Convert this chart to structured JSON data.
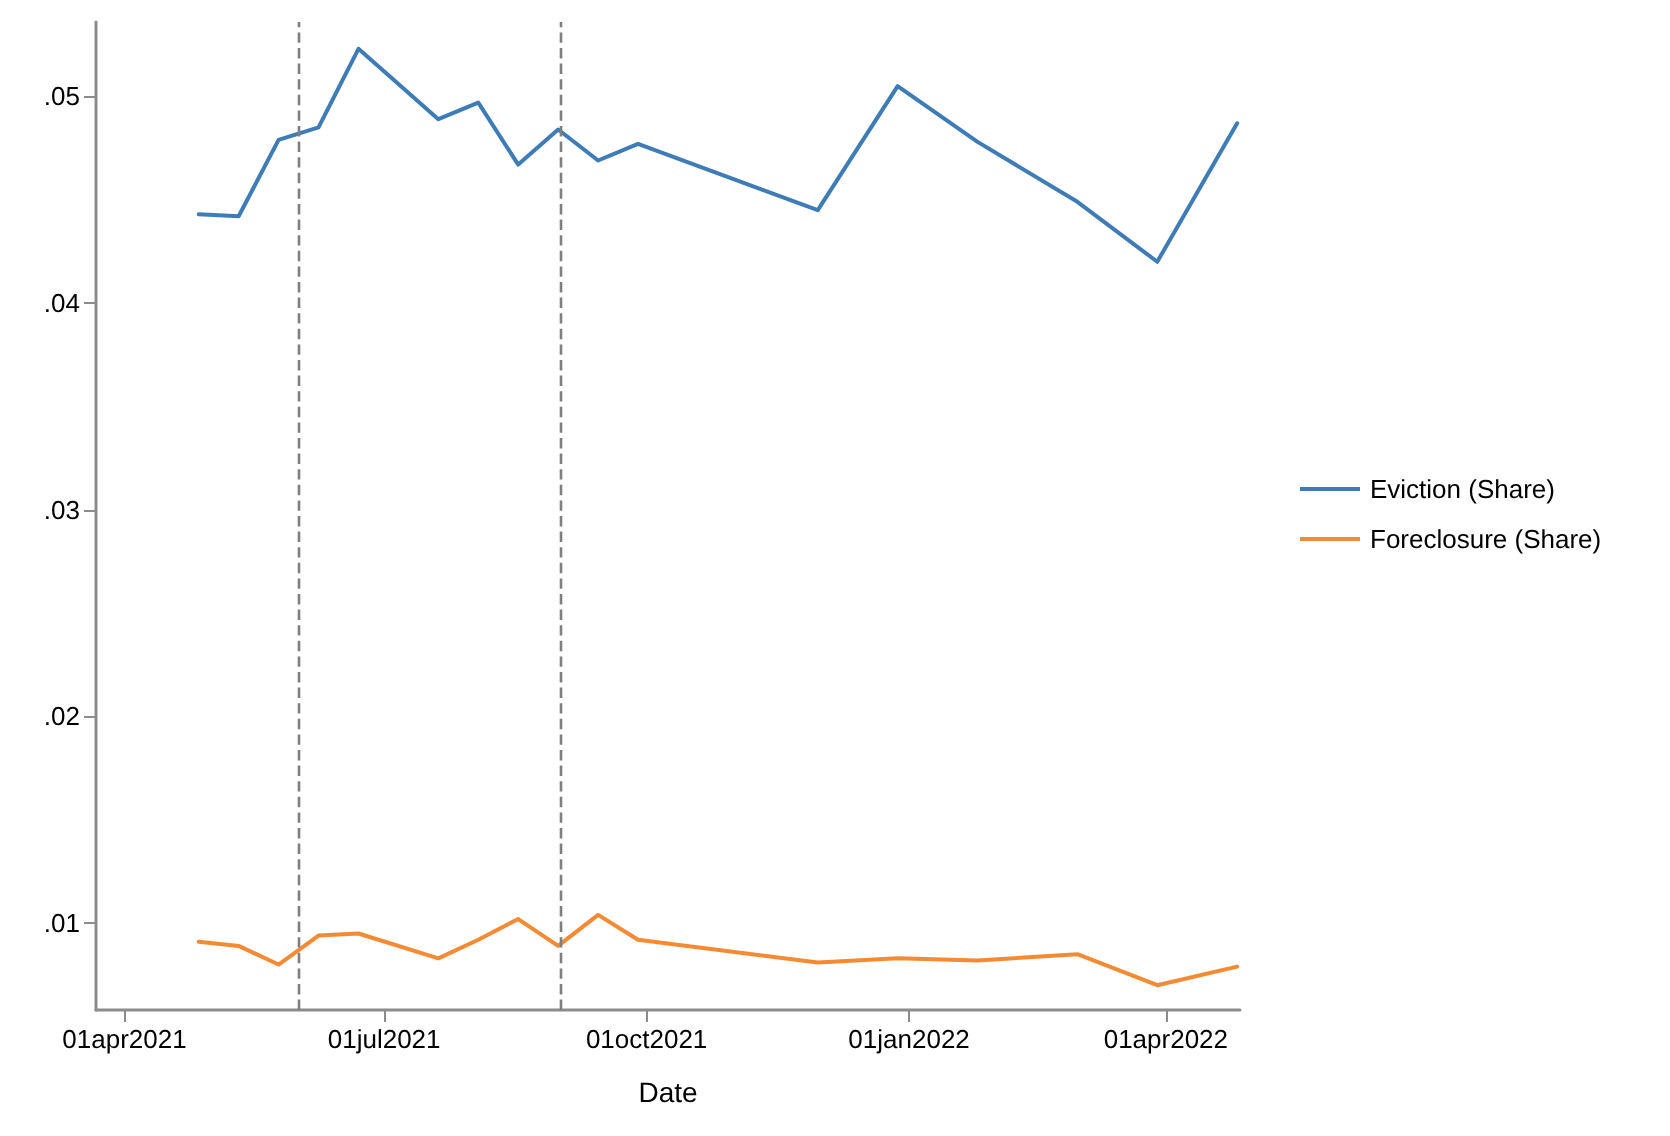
{
  "chart_data": {
    "type": "line",
    "xlabel": "Date",
    "x": [
      "2021-04-27",
      "2021-05-11",
      "2021-05-25",
      "2021-06-08",
      "2021-06-22",
      "2021-07-20",
      "2021-08-03",
      "2021-08-17",
      "2021-08-31",
      "2021-09-14",
      "2021-09-28",
      "2021-11-30",
      "2021-12-28",
      "2022-01-25",
      "2022-03-01",
      "2022-03-29",
      "2022-04-26"
    ],
    "series": [
      {
        "name": "Eviction (Share)",
        "color": "#3e7cb8",
        "values": [
          0.0443,
          0.0442,
          0.0479,
          0.0485,
          0.0523,
          0.0489,
          0.0497,
          0.0467,
          0.0484,
          0.0469,
          0.0477,
          0.0445,
          0.0505,
          0.0478,
          0.0449,
          0.042,
          0.0487
        ]
      },
      {
        "name": "Foreclosure (Share)",
        "color": "#f58a34",
        "values": [
          0.0091,
          0.0089,
          0.008,
          0.0094,
          0.0095,
          0.0083,
          0.0092,
          0.0102,
          0.0089,
          0.0104,
          0.0092,
          0.0081,
          0.0083,
          0.0082,
          0.0085,
          0.007,
          0.0079
        ]
      }
    ],
    "xlim": [
      "2021-03-22",
      "2022-04-27"
    ],
    "xticks": [
      {
        "value": "2021-04-01",
        "label": "01apr2021"
      },
      {
        "value": "2021-07-01",
        "label": "01jul2021"
      },
      {
        "value": "2021-10-01",
        "label": "01oct2021"
      },
      {
        "value": "2022-01-01",
        "label": "01jan2022"
      },
      {
        "value": "2022-04-01",
        "label": "01apr2022"
      }
    ],
    "ylim": [
      0.0058,
      0.0536
    ],
    "yticks": [
      {
        "value": 0.01,
        "label": ".01"
      },
      {
        "value": 0.02,
        "label": ".02"
      },
      {
        "value": 0.03,
        "label": ".03"
      },
      {
        "value": 0.04,
        "label": ".04"
      },
      {
        "value": 0.05,
        "label": ".05"
      }
    ],
    "ref_lines": [
      {
        "axis": "x",
        "value": "2021-06-01",
        "color": "#7f7f7f",
        "line_style": "dashed"
      },
      {
        "axis": "x",
        "value": "2021-09-01",
        "color": "#7f7f7f",
        "line_style": "dashed"
      }
    ],
    "grid": false,
    "legend": "right",
    "marker": "none",
    "line_style": "solid"
  }
}
